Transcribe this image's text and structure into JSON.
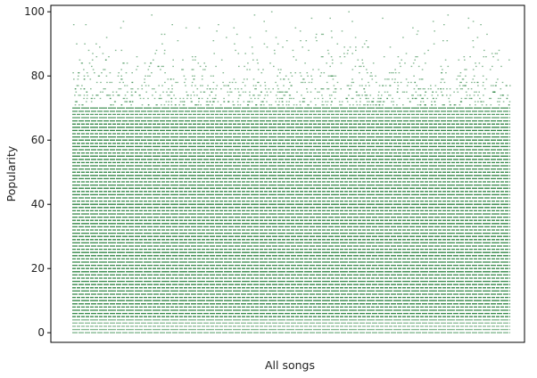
{
  "chart_data": {
    "type": "scatter",
    "title": "",
    "xlabel": "All songs",
    "ylabel": "Popularity",
    "x_ticks_shown": false,
    "ylim": [
      -3,
      102
    ],
    "yticks": [
      0,
      20,
      40,
      60,
      80,
      100
    ],
    "ytick_labels": [
      "0",
      "20",
      "40",
      "60",
      "80",
      "100"
    ],
    "grid": false,
    "legend": "none",
    "marker_color": "#1e7b34",
    "series": [
      {
        "values_note_source": "banded",
        "bands": [
          {
            "y_range": [
              0,
              70
            ],
            "density": 0.9
          },
          {
            "y_range": [
              70,
              80
            ],
            "density": 0.45
          },
          {
            "y_range": [
              80,
              90
            ],
            "density": 0.12
          },
          {
            "y_range": [
              90,
              100
            ],
            "density": 0.03
          }
        ]
      }
    ]
  }
}
